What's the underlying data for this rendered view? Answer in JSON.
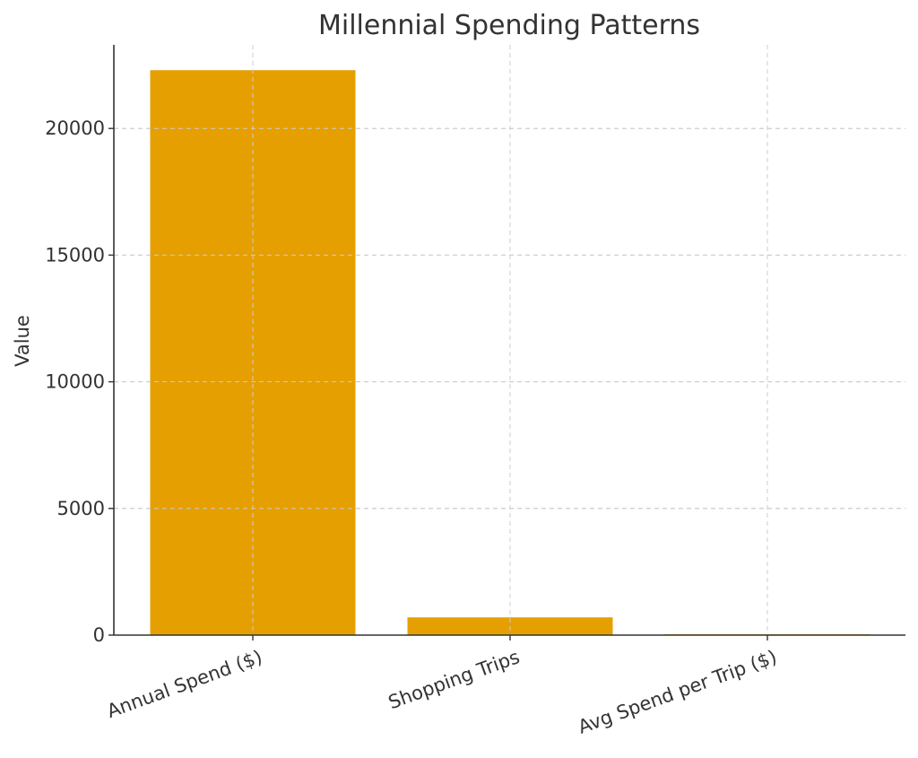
{
  "chart_data": {
    "type": "bar",
    "title": "Millennial Spending Patterns",
    "xlabel": "",
    "ylabel": "Value",
    "categories": [
      "Annual Spend ($)",
      "Shopping Trips",
      "Avg Spend per Trip ($)"
    ],
    "values": [
      22300,
      700,
      32
    ],
    "ylim": [
      0,
      23300
    ],
    "yticks": [
      0,
      5000,
      10000,
      15000,
      20000
    ],
    "grid": true,
    "bar_color": "#E69F00"
  }
}
